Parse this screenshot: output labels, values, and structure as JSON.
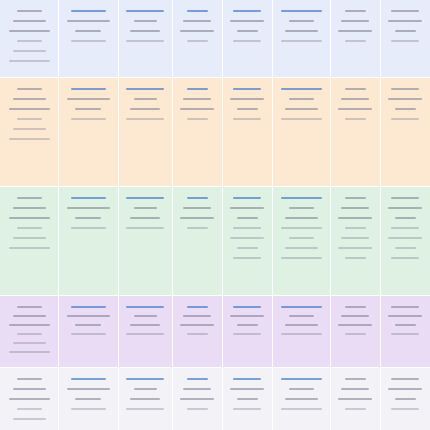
{
  "document": {
    "kind": "scanned table (text illegible at this resolution)",
    "rows": [
      {
        "id": "row-1",
        "color": "#e6ecf9"
      },
      {
        "id": "row-2",
        "color": "#fde8d2"
      },
      {
        "id": "row-3",
        "color": "#dff1e3"
      },
      {
        "id": "row-4",
        "color": "#eadcf4"
      },
      {
        "id": "row-5",
        "color": "#f3f3f7"
      }
    ],
    "accent_text_color": "#3b73c4"
  }
}
